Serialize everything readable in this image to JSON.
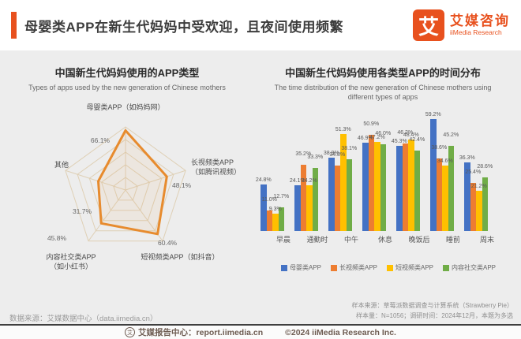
{
  "header": {
    "title": "母婴类APP在新生代妈妈中受欢迎，且夜间使用频繁",
    "logo": {
      "glyph": "艾",
      "name_cn": "艾媒咨询",
      "name_en": "iiMedia Research"
    }
  },
  "colors": {
    "accent_orange": "#e8511e",
    "radar_line": "#e78b2e",
    "radar_web": "#dfd0b6",
    "series_blue": "#4472c4",
    "series_orange": "#ed7d31",
    "series_yellow": "#ffc000",
    "series_green": "#70ad47"
  },
  "chart_data": [
    {
      "type": "radar",
      "title": "中国新生代妈妈使用的APP类型",
      "subtitle": "Types of apps used by the new generation of Chinese mothers",
      "max": 70,
      "grid_levels": 5,
      "axes": [
        {
          "label": "母婴类APP（如妈妈网）",
          "label_lines": [
            "母婴类APP（如妈妈网）"
          ],
          "value": 66.1,
          "value_label": "66.1%"
        },
        {
          "label": "长视频类APP（如腾讯视频）",
          "label_lines": [
            "长视频类APP",
            "（如腾讯视频）"
          ],
          "value": 48.1,
          "value_label": "48.1%"
        },
        {
          "label": "短视频类APP（如抖音）",
          "label_lines": [
            "短视频类APP（如抖音）"
          ],
          "value": 60.4,
          "value_label": "60.4%"
        },
        {
          "label": "内容社交类APP（如小红书）",
          "label_lines": [
            "内容社交类APP",
            "（如小红书）"
          ],
          "value": 45.8,
          "value_label": "45.8%"
        },
        {
          "label": "其他",
          "label_lines": [
            "其他"
          ],
          "value": 31.7,
          "value_label": "31.7%"
        }
      ]
    },
    {
      "type": "bar",
      "title": "中国新生代妈妈使用各类型APP的时间分布",
      "subtitle": "The time distribution of the new generation of Chinese mothers using different types of apps",
      "subtitle_line1": "The time distribution of the new generation of Chinese mothers using",
      "subtitle_line2": "different types of apps",
      "categories": [
        "早晨",
        "通勤时",
        "中午",
        "休息",
        "晚饭后",
        "睡前",
        "周末"
      ],
      "series": [
        {
          "name": "母婴类APP",
          "color": "#4472c4",
          "values": [
            24.8,
            24.1,
            38.9,
            46.9,
            45.3,
            59.2,
            36.3
          ]
        },
        {
          "name": "长视频类APP",
          "color": "#ed7d31",
          "values": [
            11.0,
            35.2,
            34.8,
            50.9,
            46.2,
            38.6,
            25.4
          ]
        },
        {
          "name": "短视频类APP",
          "color": "#ffc000",
          "values": [
            9.3,
            24.2,
            51.3,
            47.2,
            48.4,
            34.6,
            21.2
          ]
        },
        {
          "name": "内容社交类APP",
          "color": "#70ad47",
          "values": [
            12.7,
            33.3,
            38.1,
            46.0,
            42.4,
            45.2,
            28.6
          ]
        }
      ],
      "ylim": [
        0,
        65
      ],
      "unit": "%",
      "legend_position": "bottom",
      "grid": false
    }
  ],
  "footnote": {
    "line1": "样本来源：草莓派数据调查与计算系统（Strawberry Pie）",
    "line2": "样本量：N=1056；调研时间：2024年12月，本题为多选"
  },
  "source": "数据来源：艾媒数据中心（data.iimedia.cn）",
  "footer": {
    "report_center": "艾媒报告中心：report.iimedia.cn",
    "copyright": "©2024 iiMedia Research Inc."
  }
}
